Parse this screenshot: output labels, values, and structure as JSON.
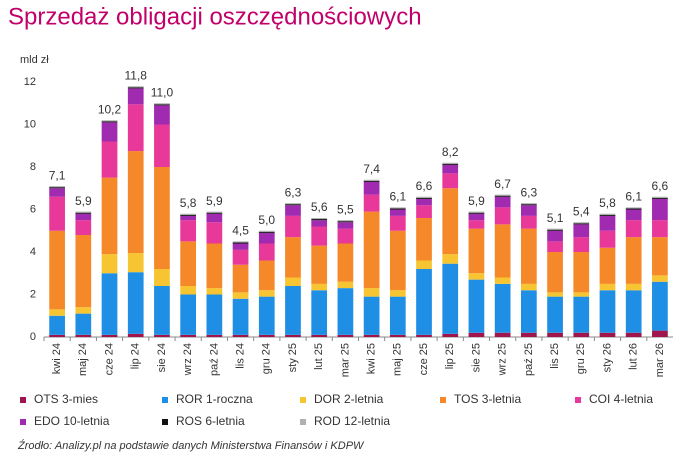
{
  "chart_data": {
    "type": "stacked_bar",
    "title": "Sprzedaż obligacji oszczędnościowych",
    "y_label": "mld zł",
    "source": "Źrodło: Analizy.pl na podstawie danych Ministerstwa Finansów i KDPW",
    "categories": [
      "kwi 24",
      "maj 24",
      "cze 24",
      "lip 24",
      "sie 24",
      "wrz 24",
      "paź 24",
      "lis 24",
      "gru 24",
      "sty 25",
      "lut 25",
      "mar 25",
      "kwi 25",
      "maj 25",
      "cze 25",
      "lip 25",
      "sie 25",
      "wrz 25",
      "paź 25",
      "lis 25",
      "gru 25",
      "sty 26",
      "lut 26",
      "mar 26"
    ],
    "series": [
      {
        "name": "OTS 3-mies",
        "color": "#a0154e",
        "values": [
          0.1,
          0.1,
          0.1,
          0.15,
          0.1,
          0.1,
          0.1,
          0.1,
          0.1,
          0.1,
          0.1,
          0.1,
          0.1,
          0.1,
          0.1,
          0.15,
          0.2,
          0.2,
          0.2,
          0.2,
          0.2,
          0.2,
          0.2,
          0.3
        ]
      },
      {
        "name": "ROR 1-roczna",
        "color": "#1f8fe5",
        "values": [
          0.9,
          1.0,
          2.9,
          2.9,
          2.3,
          1.9,
          1.9,
          1.7,
          1.8,
          2.3,
          2.1,
          2.2,
          1.8,
          1.8,
          3.1,
          3.3,
          2.5,
          2.3,
          2.0,
          1.7,
          1.7,
          2.0,
          2.0,
          2.3
        ]
      },
      {
        "name": "DOR 2-letnia",
        "color": "#f7c531",
        "values": [
          0.3,
          0.3,
          0.9,
          0.9,
          0.8,
          0.4,
          0.3,
          0.3,
          0.3,
          0.4,
          0.3,
          0.3,
          0.4,
          0.3,
          0.4,
          0.45,
          0.3,
          0.3,
          0.3,
          0.2,
          0.2,
          0.3,
          0.3,
          0.3
        ]
      },
      {
        "name": "TOS 3-letnia",
        "color": "#f5892a",
        "values": [
          3.7,
          3.4,
          3.6,
          4.8,
          4.8,
          2.1,
          2.1,
          1.3,
          1.4,
          1.9,
          1.8,
          1.8,
          3.6,
          2.8,
          2.0,
          3.1,
          2.1,
          2.5,
          2.6,
          1.9,
          1.9,
          1.7,
          2.2,
          1.8
        ]
      },
      {
        "name": "COI 4-letnia",
        "color": "#e8389a",
        "values": [
          1.6,
          0.7,
          1.7,
          2.2,
          2.0,
          1.0,
          1.0,
          0.7,
          0.8,
          1.0,
          0.9,
          0.7,
          0.8,
          0.7,
          0.6,
          0.7,
          0.4,
          0.8,
          0.6,
          0.5,
          0.7,
          0.8,
          0.8,
          0.8
        ]
      },
      {
        "name": "EDO 10-letnia",
        "color": "#a02ab0",
        "values": [
          0.4,
          0.3,
          0.9,
          0.75,
          0.9,
          0.2,
          0.4,
          0.3,
          0.5,
          0.5,
          0.3,
          0.3,
          0.6,
          0.3,
          0.3,
          0.4,
          0.3,
          0.5,
          0.5,
          0.5,
          0.6,
          0.7,
          0.5,
          1.0
        ]
      },
      {
        "name": "ROS 6-letnia",
        "color": "#111111",
        "values": [
          0.05,
          0.05,
          0.05,
          0.05,
          0.05,
          0.05,
          0.05,
          0.05,
          0.05,
          0.05,
          0.05,
          0.05,
          0.05,
          0.05,
          0.05,
          0.05,
          0.05,
          0.05,
          0.05,
          0.05,
          0.05,
          0.05,
          0.05,
          0.05
        ]
      },
      {
        "name": "ROD 12-letnia",
        "color": "#b0b0b0",
        "values": [
          0.05,
          0.05,
          0.05,
          0.05,
          0.05,
          0.05,
          0.05,
          0.05,
          0.05,
          0.05,
          0.05,
          0.05,
          0.05,
          0.05,
          0.05,
          0.05,
          0.05,
          0.05,
          0.05,
          0.05,
          0.05,
          0.05,
          0.05,
          0.05
        ]
      }
    ],
    "totals": {
      "values": [
        7.1,
        5.9,
        10.2,
        11.8,
        11.0,
        5.8,
        5.9,
        4.5,
        5.0,
        6.3,
        5.6,
        5.5,
        7.4,
        6.1,
        6.6,
        8.2,
        5.9,
        6.7,
        6.3,
        5.1,
        5.4,
        5.8,
        6.1,
        6.6
      ],
      "value_labels": [
        "7,1",
        "5,9",
        "10,2",
        "11,8",
        "11,0",
        "5,8",
        "5,9",
        "4,5",
        "5,0",
        "6,3",
        "5,6",
        "5,5",
        "7,4",
        "6,1",
        "6,6",
        "8,2",
        "5,9",
        "6,7",
        "6,3",
        "5,1",
        "5,4",
        "5,8",
        "6,1",
        "6,6"
      ]
    },
    "ylim": [
      0,
      12
    ],
    "yticks": [
      0,
      2,
      4,
      6,
      8,
      10,
      12
    ],
    "grid": false
  }
}
